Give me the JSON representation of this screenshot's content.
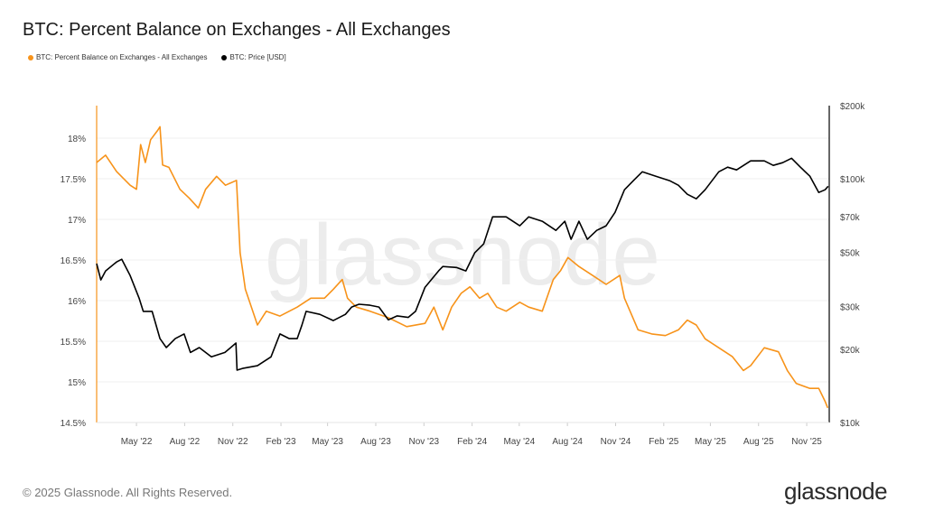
{
  "header": {
    "title": "BTC: Percent Balance on Exchanges - All Exchanges"
  },
  "footer": {
    "copyright": "© 2025 Glassnode. All Rights Reserved.",
    "logo": "glassnode",
    "watermark": "glassnode"
  },
  "chart_data": {
    "type": "line",
    "title": "BTC: Percent Balance on Exchanges - All Exchanges",
    "legend_placement": "top-left",
    "grid": true,
    "x_tick_labels": [
      "May '22",
      "Aug '22",
      "Nov '22",
      "Feb '23",
      "May '23",
      "Aug '23",
      "Nov '23",
      "Feb '24",
      "May '24",
      "Aug '24",
      "Nov '24",
      "Feb '25",
      "May '25",
      "Aug '25",
      "Nov '25"
    ],
    "x_ticks": [
      "2022-05-01",
      "2022-08-01",
      "2022-11-01",
      "2023-02-01",
      "2023-05-01",
      "2023-08-01",
      "2023-11-01",
      "2024-02-01",
      "2024-05-01",
      "2024-08-01",
      "2024-11-01",
      "2025-02-01",
      "2025-05-01",
      "2025-08-01",
      "2025-11-01"
    ],
    "xlim": [
      "2022-02-14",
      "2025-12-14"
    ],
    "y_left": {
      "ylim": [
        14.5,
        18.4
      ],
      "ticks": [
        14.5,
        15,
        15.5,
        16,
        16.5,
        17,
        17.5,
        18
      ],
      "tick_labels": [
        "14.5%",
        "15%",
        "15.5%",
        "16%",
        "16.5%",
        "17%",
        "17.5%",
        "18%"
      ],
      "color": "#f7931a"
    },
    "y_right": {
      "scale": "log",
      "ylim": [
        10000,
        200000
      ],
      "ticks": [
        10000,
        20000,
        30000,
        50000,
        70000,
        100000,
        200000
      ],
      "tick_labels": [
        "$10k",
        "$20k",
        "$30k",
        "$50k",
        "$70k",
        "$100k",
        "$200k"
      ],
      "color": "#000000"
    },
    "series": [
      {
        "name": "BTC: Percent Balance on Exchanges - All Exchanges",
        "axis": "left",
        "color": "#f7931a",
        "x": [
          "2022-02-14",
          "2022-03-03",
          "2022-03-24",
          "2022-04-19",
          "2022-05-01",
          "2022-05-09",
          "2022-05-18",
          "2022-05-28",
          "2022-06-10",
          "2022-06-15",
          "2022-06-20",
          "2022-07-02",
          "2022-07-23",
          "2022-08-10",
          "2022-08-27",
          "2022-09-10",
          "2022-10-01",
          "2022-10-18",
          "2022-11-08",
          "2022-11-15",
          "2022-11-25",
          "2022-12-18",
          "2023-01-04",
          "2023-01-30",
          "2023-03-04",
          "2023-03-30",
          "2023-04-25",
          "2023-05-12",
          "2023-05-29",
          "2023-06-08",
          "2023-06-25",
          "2023-07-21",
          "2023-08-25",
          "2023-09-29",
          "2023-11-03",
          "2023-11-20",
          "2023-12-07",
          "2023-12-24",
          "2024-01-11",
          "2024-01-28",
          "2024-02-15",
          "2024-03-02",
          "2024-03-19",
          "2024-04-06",
          "2024-05-02",
          "2024-05-19",
          "2024-06-14",
          "2024-07-05",
          "2024-07-19",
          "2024-08-02",
          "2024-08-23",
          "2024-09-18",
          "2024-10-14",
          "2024-11-09",
          "2024-11-18",
          "2024-12-14",
          "2025-01-09",
          "2025-02-04",
          "2025-03-01",
          "2025-03-18",
          "2025-04-04",
          "2025-04-21",
          "2025-05-17",
          "2025-06-12",
          "2025-07-03",
          "2025-07-17",
          "2025-08-12",
          "2025-09-08",
          "2025-09-25",
          "2025-10-12",
          "2025-11-07",
          "2025-11-24",
          "2025-12-06",
          "2025-12-11"
        ],
        "values": [
          17.7,
          17.79,
          17.59,
          17.42,
          17.37,
          17.92,
          17.7,
          17.98,
          18.09,
          18.14,
          17.67,
          17.64,
          17.37,
          17.26,
          17.14,
          17.37,
          17.53,
          17.42,
          17.48,
          16.59,
          16.14,
          15.7,
          15.87,
          15.81,
          15.92,
          16.03,
          16.03,
          16.14,
          16.26,
          16.03,
          15.92,
          15.87,
          15.79,
          15.68,
          15.72,
          15.92,
          15.64,
          15.92,
          16.09,
          16.17,
          16.03,
          16.09,
          15.92,
          15.87,
          15.98,
          15.92,
          15.87,
          16.26,
          16.37,
          16.53,
          16.42,
          16.31,
          16.2,
          16.31,
          16.03,
          15.64,
          15.59,
          15.57,
          15.64,
          15.76,
          15.7,
          15.53,
          15.42,
          15.31,
          15.14,
          15.2,
          15.42,
          15.37,
          15.14,
          14.98,
          14.92,
          14.92,
          14.76,
          14.68
        ]
      },
      {
        "name": "BTC: Price [USD]",
        "axis": "right",
        "color": "#000000",
        "x": [
          "2022-02-14",
          "2022-02-22",
          "2022-03-03",
          "2022-03-24",
          "2022-04-03",
          "2022-04-19",
          "2022-05-06",
          "2022-05-14",
          "2022-05-31",
          "2022-06-15",
          "2022-06-27",
          "2022-07-14",
          "2022-07-31",
          "2022-08-12",
          "2022-08-29",
          "2022-09-21",
          "2022-10-17",
          "2022-11-07",
          "2022-11-09",
          "2022-11-21",
          "2022-12-18",
          "2023-01-13",
          "2023-01-30",
          "2023-02-17",
          "2023-03-04",
          "2023-03-13",
          "2023-03-21",
          "2023-04-16",
          "2023-05-12",
          "2023-06-04",
          "2023-06-16",
          "2023-06-30",
          "2023-07-21",
          "2023-08-07",
          "2023-08-25",
          "2023-09-11",
          "2023-10-02",
          "2023-10-16",
          "2023-11-03",
          "2023-11-29",
          "2023-12-07",
          "2024-01-02",
          "2024-01-20",
          "2024-02-06",
          "2024-02-23",
          "2024-03-11",
          "2024-04-06",
          "2024-05-02",
          "2024-05-19",
          "2024-06-14",
          "2024-07-10",
          "2024-07-27",
          "2024-08-08",
          "2024-08-23",
          "2024-09-08",
          "2024-09-26",
          "2024-10-14",
          "2024-10-31",
          "2024-11-18",
          "2024-12-05",
          "2024-12-22",
          "2025-01-17",
          "2025-02-12",
          "2025-03-01",
          "2025-03-18",
          "2025-04-04",
          "2025-04-21",
          "2025-05-17",
          "2025-06-03",
          "2025-06-20",
          "2025-07-17",
          "2025-08-12",
          "2025-08-29",
          "2025-09-16",
          "2025-10-03",
          "2025-10-20",
          "2025-11-07",
          "2025-11-24",
          "2025-12-06",
          "2025-12-12"
        ],
        "values": [
          44900,
          38500,
          41900,
          45600,
          46800,
          40100,
          32400,
          28600,
          28600,
          22100,
          20300,
          22100,
          23100,
          19400,
          20300,
          18600,
          19400,
          21200,
          16400,
          16700,
          17100,
          18600,
          23100,
          22100,
          22100,
          25100,
          28600,
          27800,
          26200,
          27800,
          29800,
          30600,
          30300,
          29800,
          26400,
          27400,
          27000,
          28600,
          35900,
          41900,
          43700,
          43300,
          41900,
          49700,
          54100,
          69900,
          69900,
          64200,
          69900,
          67000,
          61500,
          67000,
          56500,
          67000,
          56500,
          61500,
          64200,
          72900,
          90300,
          98400,
          107000,
          102600,
          98400,
          94200,
          86500,
          82900,
          90300,
          107000,
          111700,
          108900,
          118600,
          118600,
          113700,
          116600,
          121600,
          111700,
          102600,
          88000,
          90300,
          93300
        ]
      }
    ]
  }
}
